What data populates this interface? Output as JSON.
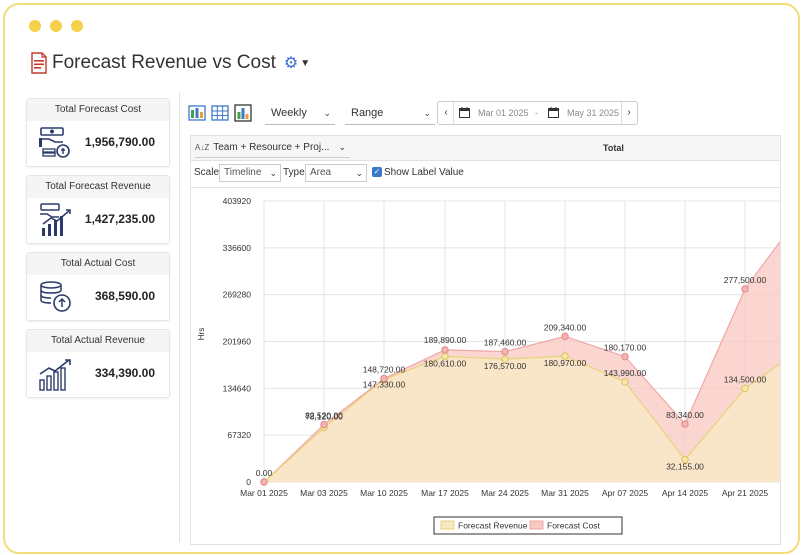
{
  "page": {
    "title": "Forecast Revenue vs Cost",
    "icons": {
      "title": "report-doc-icon",
      "settings": "gear-icon",
      "dropdown": "caret-down-icon"
    }
  },
  "cards": [
    {
      "label": "Total Forecast Cost",
      "value": "1,956,790.00",
      "icon": "money-hand-coins-icon"
    },
    {
      "label": "Total Forecast Revenue",
      "value": "1,427,235.00",
      "icon": "money-hand-growth-icon"
    },
    {
      "label": "Total Actual Cost",
      "value": "368,590.00",
      "icon": "coins-stack-up-icon"
    },
    {
      "label": "Total Actual Revenue",
      "value": "334,390.00",
      "icon": "growth-bars-icon"
    }
  ],
  "toolbar": {
    "period": "Weekly",
    "range": "Range",
    "start_date": "Mar 01 2025",
    "date_separator": "-",
    "end_date": "May 31 2025",
    "prev": "‹",
    "next": "›"
  },
  "grid": {
    "group_by": "Team + Resource + Proj...",
    "total_header": "Total"
  },
  "options": {
    "scale_label": "Scale",
    "scale_value": "Timeline",
    "type_label": "Type",
    "type_value": "Area",
    "show_label": "Show Label Value",
    "show_label_checked": true
  },
  "colors": {
    "revenue_fill": "#f8e9c4",
    "revenue_line": "#e8d37a",
    "cost_fill": "#f9c8c2",
    "cost_line": "#f0a7a7",
    "accent": "#3c78c8"
  },
  "chart_data": {
    "type": "area",
    "ylabel": "Hrs",
    "yticks": [
      "0",
      "67320",
      "134640",
      "201960",
      "269280",
      "336600",
      "403920"
    ],
    "ylim": [
      0,
      403920
    ],
    "x_labels": [
      "Mar 01 2025",
      "Mar 03 2025",
      "Mar 10 2025",
      "Mar 17 2025",
      "Mar 24 2025",
      "Mar 31 2025",
      "Apr 07 2025",
      "Apr 14 2025",
      "Apr 21 2025"
    ],
    "series": [
      {
        "name": "Forecast Revenue",
        "values": [
          0,
          78120,
          147330,
          180610,
          176570,
          180970,
          143990,
          32155,
          134500
        ],
        "labels": [
          "0.00",
          "78,120.00",
          "147,330.00",
          "180,610.00",
          "176,570.00",
          "180,970.00",
          "143,990.00",
          "32,155.00",
          "134,500.00"
        ]
      },
      {
        "name": "Forecast Cost",
        "values": [
          0,
          82520,
          148720,
          189890,
          187460,
          209340,
          180170,
          83340,
          277500
        ],
        "labels": [
          "0.00",
          "82,520.00",
          "148,720.00",
          "189,890.00",
          "187,460.00",
          "209,340.00",
          "180,170.00",
          "83,340.00",
          "277,500.00"
        ]
      }
    ],
    "grid": true,
    "legend": "bottom-center"
  }
}
